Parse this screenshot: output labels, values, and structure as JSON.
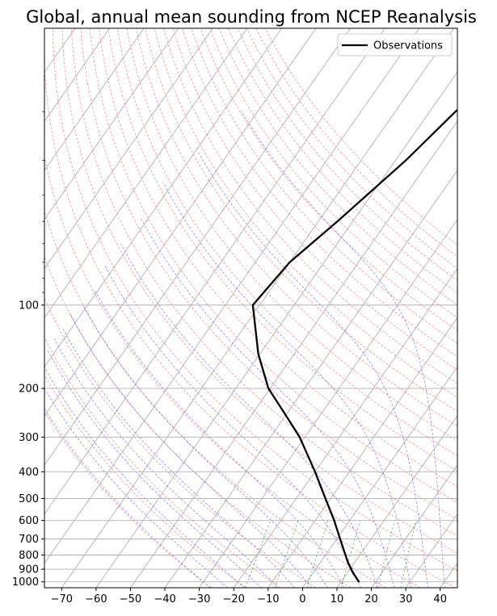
{
  "chart_data": {
    "type": "line",
    "title": "Global, annual mean sounding from NCEP Reanalysis",
    "xlabel": "",
    "ylabel": "",
    "xlim": [
      -75,
      45
    ],
    "ylim": [
      1050,
      10
    ],
    "yscale": "log",
    "x_ticks": [
      -70,
      -60,
      -50,
      -40,
      -30,
      -20,
      -10,
      0,
      10,
      20,
      30,
      40
    ],
    "x_tick_labels": [
      "−70",
      "−60",
      "−50",
      "−40",
      "−30",
      "−20",
      "−10",
      "0",
      "10",
      "20",
      "30",
      "40"
    ],
    "y_ticks": [
      100,
      200,
      300,
      400,
      500,
      600,
      700,
      800,
      900,
      1000
    ],
    "y_tick_labels": [
      "100",
      "200",
      "300",
      "400",
      "500",
      "600",
      "700",
      "800",
      "900",
      "1000"
    ],
    "grid": true,
    "legend_position": "top-right",
    "background_lines": [
      "dry adiabats",
      "moist adiabats",
      "mixing ratio lines",
      "skewed isotherms"
    ],
    "colors": {
      "isobar": "#b0b0b0",
      "isotherm": "#b0b0b0",
      "dry_adiabat": "#ff7070",
      "moist_adiabat": "#6a6aff",
      "mixing_ratio": "#3aa03a",
      "observations": "#000000"
    },
    "series": [
      {
        "name": "Observations",
        "color": "#000000",
        "pressure": [
          1000,
          925,
          850,
          700,
          600,
          500,
          400,
          300,
          250,
          200,
          150,
          100,
          70,
          50,
          30,
          20,
          10
        ],
        "temperature": [
          15.2,
          11.5,
          8.0,
          1.0,
          -4.5,
          -11.5,
          -20.0,
          -31.5,
          -40.0,
          -50.5,
          -60.5,
          -72.0,
          -70.0,
          -64.5,
          -57.0,
          -52.5,
          -43.5
        ]
      }
    ]
  }
}
